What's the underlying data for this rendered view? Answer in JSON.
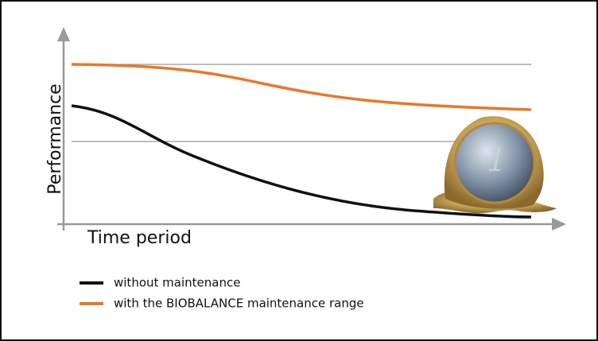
{
  "axes": {
    "y_label": "Performance",
    "x_label": "Time period"
  },
  "legend": [
    {
      "label": "without maintenance",
      "color": "#111111"
    },
    {
      "label": "with the BIOBALANCE maintenance range",
      "color": "#e8782a"
    }
  ]
}
